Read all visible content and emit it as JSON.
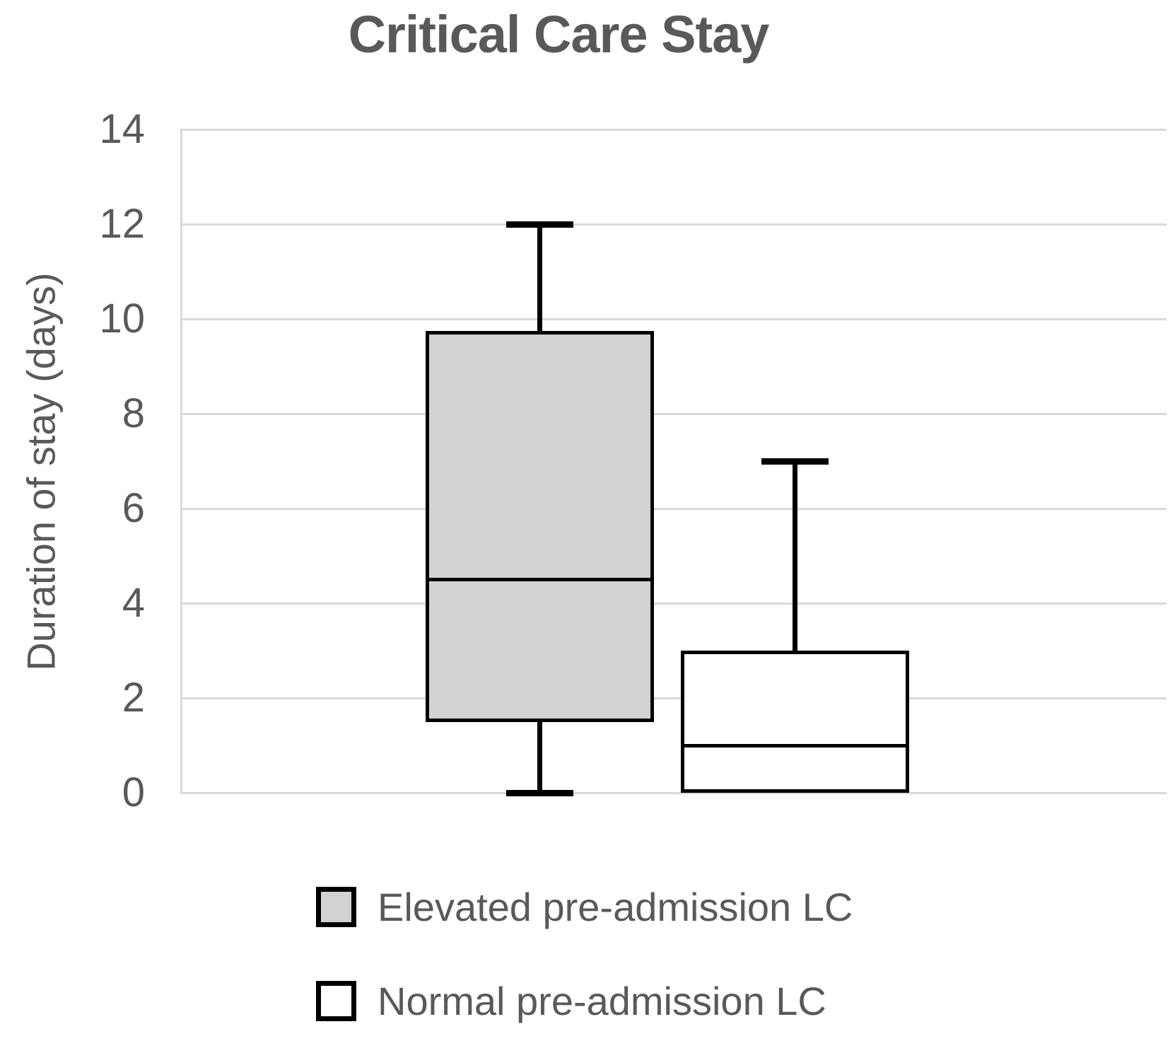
{
  "title": "Critical Care Stay",
  "colors": {
    "text": "#595959",
    "gridline": "#d9d9d9",
    "box_border": "#000000",
    "elevated_fill": "#d2d2d0",
    "normal_fill": "#ffffff"
  },
  "chart_data": {
    "type": "boxplot",
    "title": "Critical Care Stay",
    "xlabel": "",
    "ylabel": "Duration of stay (days)",
    "ylim": [
      0,
      14
    ],
    "yticks": [
      0,
      2,
      4,
      6,
      8,
      10,
      12,
      14
    ],
    "grid": true,
    "legend_position": "bottom",
    "series": [
      {
        "name": "Elevated pre-admission LC",
        "min": 0,
        "q1": 1.5,
        "median": 4.5,
        "q3": 9.75,
        "max": 12,
        "fill": "#d2d2d0"
      },
      {
        "name": "Normal pre-admission LC",
        "min": 0,
        "q1": 0,
        "median": 1,
        "q3": 3,
        "max": 7,
        "fill": "#ffffff"
      }
    ]
  },
  "legend": {
    "items": [
      {
        "label": "Elevated pre-admission LC",
        "fill": "#d2d2d0"
      },
      {
        "label": "Normal pre-admission LC",
        "fill": "#ffffff"
      }
    ]
  }
}
